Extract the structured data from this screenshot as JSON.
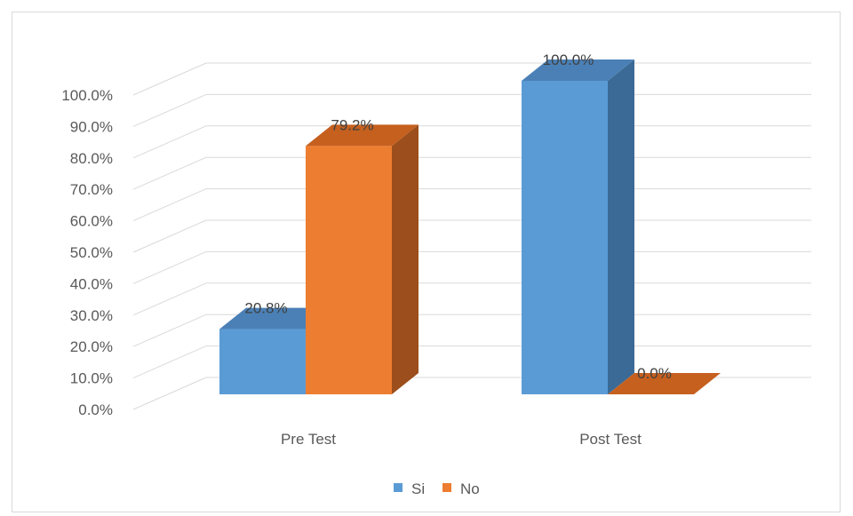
{
  "chart_data": {
    "type": "bar",
    "style": "3d-clustered-column",
    "categories": [
      "Pre Test",
      "Post Test"
    ],
    "series": [
      {
        "name": "Si",
        "values": [
          20.8,
          100.0
        ],
        "labels": [
          "20.8%",
          "100.0%"
        ],
        "color": "#5b9bd5",
        "side_color": "#3a6a95",
        "top_color": "#4a80b6"
      },
      {
        "name": "No",
        "values": [
          79.2,
          0.0
        ],
        "labels": [
          "79.2%",
          "0.0%"
        ],
        "color": "#ed7d31",
        "side_color": "#9c4f1c",
        "top_color": "#c5601f"
      }
    ],
    "yticks": [
      "0.0%",
      "10.0%",
      "20.0%",
      "30.0%",
      "40.0%",
      "50.0%",
      "60.0%",
      "70.0%",
      "80.0%",
      "90.0%",
      "100.0%"
    ],
    "ylim": [
      0,
      110
    ],
    "grid": true,
    "legend_position": "bottom",
    "gridline_color": "#d9d9d9"
  }
}
